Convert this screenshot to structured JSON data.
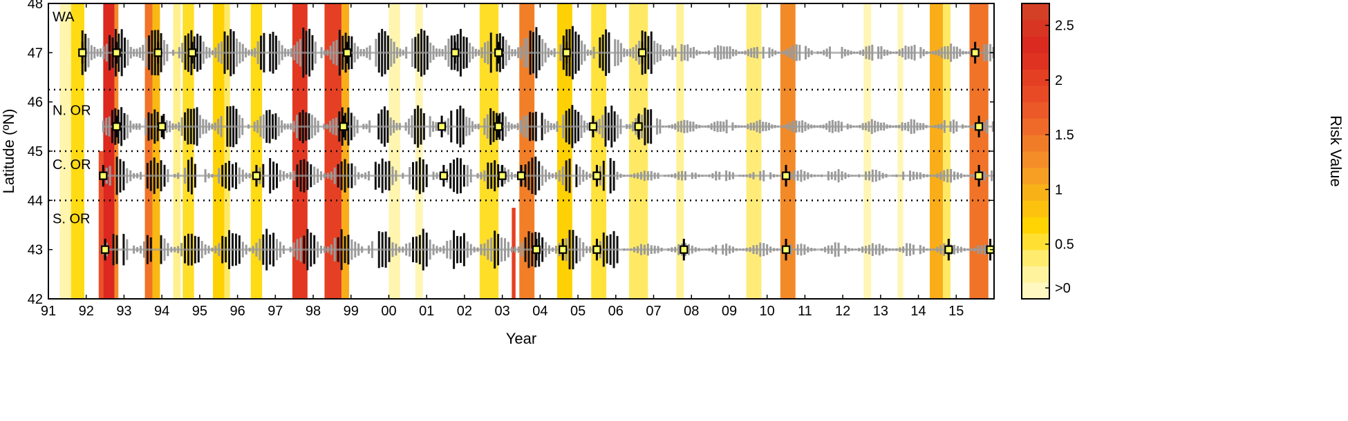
{
  "chart_data": {
    "type": "heatmap",
    "xlabel": "Year",
    "ylabel": "Latitude (ºN)",
    "colorbar_label": "Risk Value",
    "xlim": [
      1991,
      2016
    ],
    "ylim": [
      42,
      48
    ],
    "x_ticks": [
      {
        "pos": 1991,
        "label": "91"
      },
      {
        "pos": 1992,
        "label": "92"
      },
      {
        "pos": 1993,
        "label": "93"
      },
      {
        "pos": 1994,
        "label": "94"
      },
      {
        "pos": 1995,
        "label": "95"
      },
      {
        "pos": 1996,
        "label": "96"
      },
      {
        "pos": 1997,
        "label": "97"
      },
      {
        "pos": 1998,
        "label": "98"
      },
      {
        "pos": 1999,
        "label": "99"
      },
      {
        "pos": 2000,
        "label": "00"
      },
      {
        "pos": 2001,
        "label": "01"
      },
      {
        "pos": 2002,
        "label": "02"
      },
      {
        "pos": 2003,
        "label": "03"
      },
      {
        "pos": 2004,
        "label": "04"
      },
      {
        "pos": 2005,
        "label": "05"
      },
      {
        "pos": 2006,
        "label": "06"
      },
      {
        "pos": 2007,
        "label": "07"
      },
      {
        "pos": 2008,
        "label": "08"
      },
      {
        "pos": 2009,
        "label": "09"
      },
      {
        "pos": 2010,
        "label": "10"
      },
      {
        "pos": 2011,
        "label": "11"
      },
      {
        "pos": 2012,
        "label": "12"
      },
      {
        "pos": 2013,
        "label": "13"
      },
      {
        "pos": 2014,
        "label": "14"
      },
      {
        "pos": 2015,
        "label": "15"
      }
    ],
    "y_ticks": [
      42,
      43,
      44,
      45,
      46,
      47,
      48
    ],
    "colorbar": {
      "min": 0,
      "max": 2.7,
      "ticks": [
        {
          "value": 0.1,
          "label": ">0"
        },
        {
          "value": 0.5,
          "label": "0.5"
        },
        {
          "value": 1,
          "label": "1"
        },
        {
          "value": 1.5,
          "label": "1.5"
        },
        {
          "value": 2,
          "label": "2"
        },
        {
          "value": 2.5,
          "label": "2.5"
        }
      ]
    },
    "regions": [
      {
        "name": "WA",
        "label_y": 47.75,
        "lat": 47.0
      },
      {
        "name": "N. OR",
        "label_y": 45.85,
        "lat": 45.5
      },
      {
        "name": "C. OR",
        "label_y": 44.75,
        "lat": 44.5
      },
      {
        "name": "S. OR",
        "label_y": 43.65,
        "lat": 43.0
      }
    ],
    "region_dividers": [
      46.25,
      45.0,
      44.0
    ],
    "risk_bands": [
      {
        "x0": 1991.3,
        "x1": 1991.7,
        "y0": 42,
        "y1": 48,
        "value": 0.15
      },
      {
        "x0": 1991.6,
        "x1": 1991.95,
        "y0": 42,
        "y1": 48,
        "value": 0.6
      },
      {
        "x0": 1992.33,
        "x1": 1992.45,
        "y0": 42,
        "y1": 45,
        "value": 1.8
      },
      {
        "x0": 1992.45,
        "x1": 1992.75,
        "y0": 42,
        "y1": 48,
        "value": 2.3
      },
      {
        "x0": 1992.75,
        "x1": 1992.85,
        "y0": 42,
        "y1": 48,
        "value": 1.3
      },
      {
        "x0": 1993.55,
        "x1": 1993.75,
        "y0": 42,
        "y1": 48,
        "value": 1.5
      },
      {
        "x0": 1993.75,
        "x1": 1993.95,
        "y0": 42,
        "y1": 48,
        "value": 0.9
      },
      {
        "x0": 1994.3,
        "x1": 1994.5,
        "y0": 42,
        "y1": 48,
        "value": 0.3
      },
      {
        "x0": 1994.55,
        "x1": 1994.85,
        "y0": 42,
        "y1": 48,
        "value": 0.55
      },
      {
        "x0": 1995.35,
        "x1": 1995.65,
        "y0": 42,
        "y1": 48,
        "value": 0.7
      },
      {
        "x0": 1995.65,
        "x1": 1995.8,
        "y0": 42,
        "y1": 48,
        "value": 0.4
      },
      {
        "x0": 1996.35,
        "x1": 1996.65,
        "y0": 42,
        "y1": 48,
        "value": 0.6
      },
      {
        "x0": 1997.45,
        "x1": 1997.85,
        "y0": 42,
        "y1": 48,
        "value": 2.1
      },
      {
        "x0": 1998.3,
        "x1": 1998.75,
        "y0": 42,
        "y1": 48,
        "value": 2.0
      },
      {
        "x0": 1998.75,
        "x1": 1998.95,
        "y0": 42,
        "y1": 48,
        "value": 1.0
      },
      {
        "x0": 2000.0,
        "x1": 2000.3,
        "y0": 42,
        "y1": 48,
        "value": 0.15
      },
      {
        "x0": 2000.7,
        "x1": 2000.9,
        "y0": 42,
        "y1": 48,
        "value": 0.12
      },
      {
        "x0": 2002.4,
        "x1": 2002.9,
        "y0": 42,
        "y1": 48,
        "value": 0.55
      },
      {
        "x0": 2003.25,
        "x1": 2003.35,
        "y0": 42,
        "y1": 43.85,
        "value": 2.0
      },
      {
        "x0": 2003.45,
        "x1": 2003.85,
        "y0": 42,
        "y1": 48,
        "value": 1.4
      },
      {
        "x0": 2004.45,
        "x1": 2004.85,
        "y0": 42,
        "y1": 48,
        "value": 0.7
      },
      {
        "x0": 2005.35,
        "x1": 2005.75,
        "y0": 42,
        "y1": 48,
        "value": 0.5
      },
      {
        "x0": 2006.35,
        "x1": 2006.85,
        "y0": 42,
        "y1": 48,
        "value": 0.4
      },
      {
        "x0": 2007.6,
        "x1": 2007.8,
        "y0": 42,
        "y1": 48,
        "value": 0.25
      },
      {
        "x0": 2009.45,
        "x1": 2009.85,
        "y0": 42,
        "y1": 48,
        "value": 0.35
      },
      {
        "x0": 2010.35,
        "x1": 2010.75,
        "y0": 42,
        "y1": 48,
        "value": 1.3
      },
      {
        "x0": 2012.55,
        "x1": 2012.75,
        "y0": 42,
        "y1": 48,
        "value": 0.12
      },
      {
        "x0": 2013.45,
        "x1": 2013.6,
        "y0": 42,
        "y1": 48,
        "value": 0.12
      },
      {
        "x0": 2014.3,
        "x1": 2014.65,
        "y0": 42,
        "y1": 48,
        "value": 1.0
      },
      {
        "x0": 2014.65,
        "x1": 2014.85,
        "y0": 42,
        "y1": 48,
        "value": 0.4
      },
      {
        "x0": 2015.35,
        "x1": 2015.85,
        "y0": 42,
        "y1": 48,
        "value": 1.5
      }
    ],
    "anomaly_series": [
      {
        "region": "WA",
        "lat": 47.0,
        "x0": 1991.9,
        "x1": 2016.0,
        "step": 0.08,
        "high_until": 2007.5,
        "max_half": 0.55
      },
      {
        "region": "N. OR",
        "lat": 45.5,
        "x0": 1992.45,
        "x1": 2016.0,
        "step": 0.08,
        "high_until": 2007.2,
        "max_half": 0.45
      },
      {
        "region": "C. OR",
        "lat": 44.5,
        "x0": 1992.45,
        "x1": 2016.0,
        "step": 0.09,
        "high_until": 2006.0,
        "max_half": 0.4
      },
      {
        "region": "S. OR",
        "lat": 43.0,
        "x0": 1992.45,
        "x1": 2016.0,
        "step": 0.09,
        "high_until": 2006.2,
        "max_half": 0.45
      }
    ],
    "event_markers": [
      {
        "region": "WA",
        "lat": 47.0,
        "x": [
          1991.9,
          1992.8,
          1993.9,
          1994.8,
          1998.9,
          2001.75,
          2002.9,
          2004.7,
          2006.7,
          2015.5
        ]
      },
      {
        "region": "N. OR",
        "lat": 45.5,
        "x": [
          1992.8,
          1994.0,
          1998.8,
          2001.4,
          2002.9,
          2005.4,
          2006.6,
          2015.6
        ]
      },
      {
        "region": "C. OR",
        "lat": 44.5,
        "x": [
          1992.45,
          1996.5,
          2001.45,
          2003.0,
          2003.5,
          2005.5,
          2010.5,
          2015.6
        ]
      },
      {
        "region": "S. OR",
        "lat": 43.0,
        "x": [
          1992.5,
          2003.9,
          2004.6,
          2005.5,
          2007.8,
          2010.5,
          2014.8,
          2015.9
        ]
      }
    ]
  }
}
